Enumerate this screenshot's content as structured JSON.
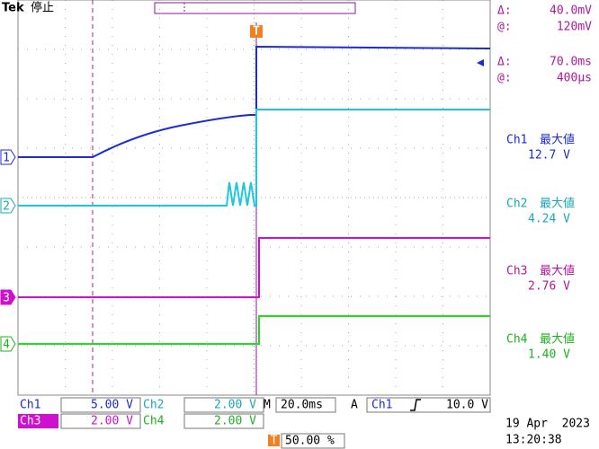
{
  "header": {
    "brand": "Tek",
    "status": "停止"
  },
  "cursor_readout": [
    {
      "delta_label": "Δ:",
      "delta": "40.0mV",
      "at_label": "@:",
      "at": "120mV"
    },
    {
      "delta_label": "Δ:",
      "delta": "70.0ms",
      "at_label": "@:",
      "at": "400µs"
    }
  ],
  "channel_markers": [
    "1",
    "2",
    "3",
    "4"
  ],
  "measurements": [
    {
      "channel": "Ch1",
      "label": "最大値",
      "value": "12.7 V"
    },
    {
      "channel": "Ch2",
      "label": "最大値",
      "value": "4.24 V"
    },
    {
      "channel": "Ch3",
      "label": "最大値",
      "value": "2.76 V"
    },
    {
      "channel": "Ch4",
      "label": "最大値",
      "value": "1.40 V"
    }
  ],
  "status_bar": {
    "ch1": {
      "name": "Ch1",
      "scale": "5.00 V"
    },
    "ch2": {
      "name": "Ch2",
      "scale": "2.00 V"
    },
    "ch3": {
      "name": "Ch3",
      "scale": "2.00 V"
    },
    "ch4": {
      "name": "Ch4",
      "scale": "2.00 V"
    },
    "timebase_label": "M",
    "timebase": "20.0ms",
    "trigger_mode": "A",
    "trigger_source": "Ch1",
    "trigger_level": "10.0 V",
    "trigger_marker": "T",
    "trigger_position": "50.00 %"
  },
  "date": "19 Apr  2023",
  "time": "13:20:38"
}
